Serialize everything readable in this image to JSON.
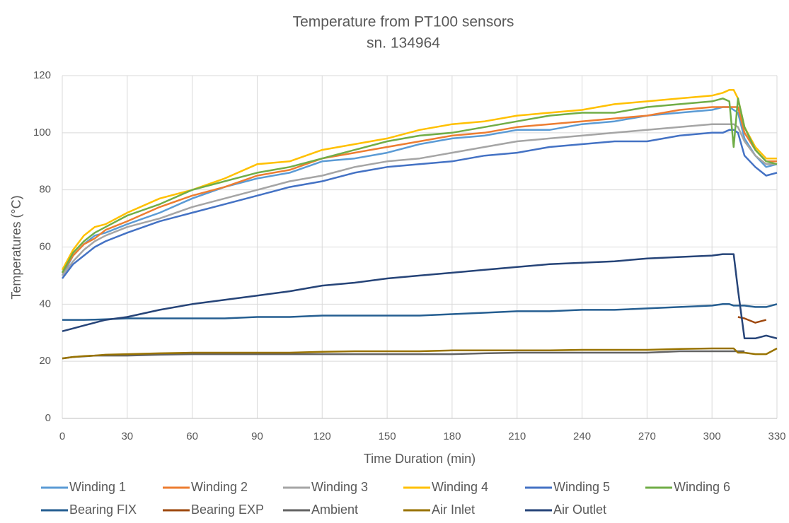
{
  "chart_data": {
    "type": "line",
    "title": "Temperature from PT100 sensors",
    "subtitle": "sn. 134964",
    "x_label": "Time Duration (min)",
    "y_label": "Temperatures (°C)",
    "xlim": [
      0,
      330
    ],
    "xticks": [
      0,
      30,
      60,
      90,
      120,
      150,
      180,
      210,
      240,
      270,
      300,
      330
    ],
    "ylim": [
      0,
      120
    ],
    "yticks": [
      0,
      20,
      40,
      60,
      80,
      100,
      120
    ],
    "grid": true,
    "legend": "bottom",
    "x": [
      0,
      5,
      10,
      15,
      20,
      30,
      45,
      60,
      75,
      90,
      105,
      120,
      135,
      150,
      165,
      180,
      195,
      210,
      225,
      240,
      255,
      270,
      285,
      300,
      305,
      308,
      310,
      312,
      315,
      320,
      325,
      330
    ],
    "series": [
      {
        "name": "Winding 1",
        "color": "#5b9bd5",
        "values": [
          50,
          57,
          61,
          64,
          65,
          68,
          72,
          77,
          81,
          84,
          86,
          90,
          91,
          93,
          96,
          98,
          99,
          101,
          101,
          103,
          104,
          106,
          107,
          108,
          109,
          109,
          108,
          107,
          98,
          92,
          88,
          89
        ]
      },
      {
        "name": "Winding 2",
        "color": "#ed7d31",
        "values": [
          51,
          57,
          61,
          63,
          66,
          69,
          74,
          78,
          81,
          85,
          87,
          91,
          93,
          95,
          97,
          99,
          100,
          102,
          103,
          104,
          105,
          106,
          108,
          109,
          109,
          109,
          109,
          109,
          100,
          94,
          90,
          90
        ]
      },
      {
        "name": "Winding 3",
        "color": "#a5a5a5",
        "values": [
          50,
          55,
          59,
          62,
          64,
          67,
          70,
          74,
          77,
          80,
          83,
          85,
          88,
          90,
          91,
          93,
          95,
          97,
          98,
          99,
          100,
          101,
          102,
          103,
          103,
          103,
          103,
          102,
          97,
          92,
          89,
          89
        ]
      },
      {
        "name": "Winding 4",
        "color": "#ffc000",
        "values": [
          52,
          59,
          64,
          67,
          68,
          72,
          77,
          80,
          84,
          89,
          90,
          94,
          96,
          98,
          101,
          103,
          104,
          106,
          107,
          108,
          110,
          111,
          112,
          113,
          114,
          115,
          115,
          112,
          102,
          95,
          91,
          91
        ]
      },
      {
        "name": "Winding 5",
        "color": "#4472c4",
        "values": [
          49,
          54,
          57,
          60,
          62,
          65,
          69,
          72,
          75,
          78,
          81,
          83,
          86,
          88,
          89,
          90,
          92,
          93,
          95,
          96,
          97,
          97,
          99,
          100,
          100,
          101,
          101,
          100,
          92,
          88,
          85,
          86
        ]
      },
      {
        "name": "Winding 6",
        "color": "#70ad47",
        "values": [
          51,
          58,
          62,
          65,
          67,
          71,
          75,
          80,
          83,
          86,
          88,
          91,
          94,
          97,
          99,
          100,
          102,
          104,
          106,
          107,
          107,
          109,
          110,
          111,
          112,
          111,
          95,
          112,
          102,
          94,
          90,
          89
        ]
      },
      {
        "name": "Bearing FIX",
        "color": "#255e91",
        "values": [
          34.5,
          34.5,
          34.5,
          34.6,
          34.7,
          35,
          35,
          35,
          35,
          35.5,
          35.5,
          36,
          36,
          36,
          36,
          36.5,
          37,
          37.5,
          37.5,
          38,
          38,
          38.5,
          39,
          39.5,
          40,
          40,
          39.5,
          39.5,
          39.5,
          39,
          39,
          40
        ]
      },
      {
        "name": "Bearing EXP",
        "color": "#9e480e",
        "values": [
          null,
          null,
          null,
          null,
          null,
          null,
          null,
          null,
          null,
          null,
          null,
          null,
          null,
          null,
          null,
          null,
          null,
          null,
          null,
          null,
          null,
          null,
          null,
          null,
          null,
          null,
          null,
          35.5,
          35,
          33.5,
          34.5,
          null
        ]
      },
      {
        "name": "Ambient",
        "color": "#636363",
        "values": [
          21,
          21.5,
          21.7,
          22,
          22,
          22,
          22.3,
          22.5,
          22.5,
          22.5,
          22.5,
          22.5,
          22.5,
          22.5,
          22.5,
          22.5,
          22.8,
          23,
          23,
          23,
          23,
          23,
          23.5,
          23.5,
          23.5,
          23.5,
          23.5,
          23.5,
          23.5,
          null,
          null,
          null
        ]
      },
      {
        "name": "Air Inlet",
        "color": "#997300",
        "values": [
          21,
          21.5,
          21.8,
          22,
          22.3,
          22.5,
          22.8,
          23,
          23,
          23,
          23,
          23.3,
          23.5,
          23.5,
          23.5,
          23.8,
          23.8,
          23.8,
          23.8,
          24,
          24,
          24,
          24.3,
          24.5,
          24.5,
          24.5,
          24.5,
          23,
          23,
          22.5,
          22.5,
          24.5
        ]
      },
      {
        "name": "Air Outlet",
        "color": "#264478",
        "values": [
          30.5,
          31.5,
          32.5,
          33.5,
          34.5,
          35.5,
          38,
          40,
          41.5,
          43,
          44.5,
          46.5,
          47.5,
          49,
          50,
          51,
          52,
          53,
          54,
          54.5,
          55,
          56,
          56.5,
          57,
          57.5,
          57.5,
          57.5,
          45,
          28,
          28,
          29,
          28
        ]
      }
    ]
  }
}
